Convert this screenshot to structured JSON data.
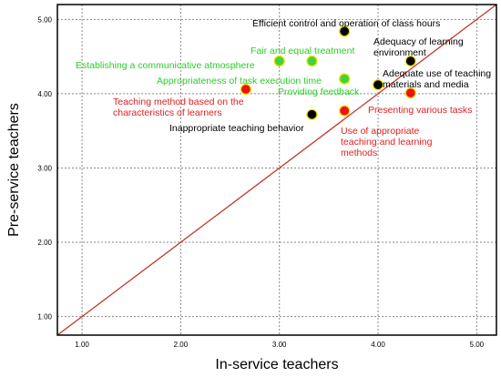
{
  "chart_data": {
    "type": "scatter",
    "xlabel": "In-service teachers",
    "ylabel": "Pre-service teachers",
    "xlim": [
      0.75,
      5.2
    ],
    "ylim": [
      0.75,
      5.2
    ],
    "xticks": [
      1,
      2,
      3,
      4,
      5
    ],
    "yticks": [
      1,
      2,
      3,
      4,
      5
    ],
    "xtick_labels": [
      "1.00",
      "2.00",
      "3.00",
      "4.00",
      "5.00"
    ],
    "ytick_labels": [
      "1.00",
      "2.00",
      "3.00",
      "4.00",
      "5.00"
    ],
    "grid": true,
    "reference_line": {
      "type": "y = x",
      "color": "#c0392b"
    },
    "colors": {
      "black": "#000000",
      "green": "#3fd43f",
      "red": "#ee1111",
      "outline": "#f2e200"
    },
    "label_colors": {
      "black": "#000000",
      "green": "#2ecc2e",
      "red": "#e02020"
    },
    "points": [
      {
        "label": "Efficient control and operation of class hours",
        "x": 3.66,
        "y": 4.84,
        "group": "black"
      },
      {
        "label": "Fair and equal treatment",
        "x": 3.33,
        "y": 4.44,
        "group": "green"
      },
      {
        "label": "Establishing a communicative atmosphere",
        "x": 3.0,
        "y": 4.44,
        "group": "green"
      },
      {
        "label": "Adequacy of learning environment",
        "x": 4.33,
        "y": 4.44,
        "group": "black"
      },
      {
        "label": "Appropriateness of task execution time",
        "x": 3.66,
        "y": 4.2,
        "group": "green"
      },
      {
        "label": "Providing feedback",
        "x": 3.66,
        "y": 4.2,
        "group": "green"
      },
      {
        "label": "Adequate use of teaching materials and media",
        "x": 4.0,
        "y": 4.12,
        "group": "black"
      },
      {
        "label": "Teaching method based on the characteristics of learners",
        "x": 2.66,
        "y": 4.06,
        "group": "red"
      },
      {
        "label": "Presenting various tasks",
        "x": 4.33,
        "y": 4.01,
        "group": "red"
      },
      {
        "label": "Inappropriate teaching behavior",
        "x": 3.33,
        "y": 3.72,
        "group": "black"
      },
      {
        "label": "Use of appropriate teaching and learning methods",
        "x": 3.66,
        "y": 3.77,
        "group": "red"
      }
    ]
  }
}
